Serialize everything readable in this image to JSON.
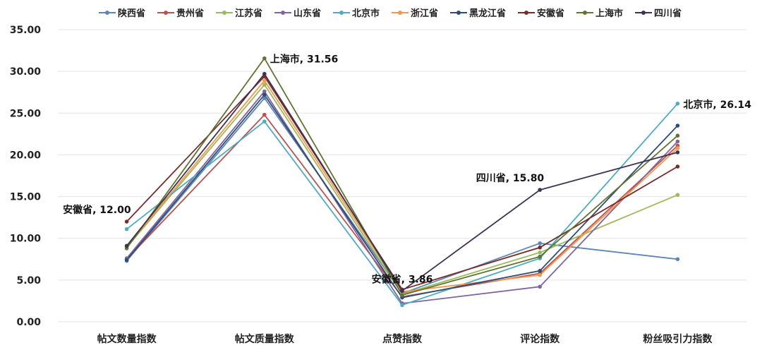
{
  "chart_data": {
    "type": "line",
    "categories": [
      "帖文数量指数",
      "帖文质量指数",
      "点赞指数",
      "评论指数",
      "粉丝吸引力指数"
    ],
    "ylim": [
      0,
      35
    ],
    "yticks": [
      "0.00",
      "5.00",
      "10.00",
      "15.00",
      "20.00",
      "25.00",
      "30.00",
      "35.00"
    ],
    "grid": true,
    "legend": "top",
    "series": [
      {
        "name": "陕西省",
        "color": "#5b86b5",
        "values": [
          7.3,
          26.8,
          3.4,
          9.4,
          7.5
        ]
      },
      {
        "name": "贵州省",
        "color": "#c0504d",
        "values": [
          7.5,
          24.8,
          3.0,
          5.8,
          21.1
        ]
      },
      {
        "name": "江苏省",
        "color": "#9bbb59",
        "values": [
          8.9,
          28.4,
          3.3,
          8.3,
          15.2
        ]
      },
      {
        "name": "山东省",
        "color": "#8064a2",
        "values": [
          7.6,
          27.6,
          2.2,
          4.2,
          21.6
        ]
      },
      {
        "name": "北京市",
        "color": "#4bacc6",
        "values": [
          11.1,
          24.0,
          2.0,
          7.6,
          26.14
        ]
      },
      {
        "name": "浙江省",
        "color": "#f79646",
        "values": [
          9.0,
          28.9,
          3.6,
          5.6,
          20.8
        ]
      },
      {
        "name": "黑龙江省",
        "color": "#2c4d75",
        "values": [
          7.4,
          27.2,
          2.9,
          6.1,
          23.5
        ]
      },
      {
        "name": "安徽省",
        "color": "#772c2a",
        "values": [
          12.0,
          29.4,
          3.86,
          8.9,
          18.6
        ]
      },
      {
        "name": "上海市",
        "color": "#5f7530",
        "values": [
          8.8,
          31.56,
          3.2,
          7.8,
          22.3
        ]
      },
      {
        "name": "四川省",
        "color": "#403152",
        "values": [
          9.1,
          29.7,
          3.7,
          15.8,
          20.3
        ]
      }
    ],
    "annotations": [
      {
        "text": "安徽省, 12.00",
        "series": "安徽省",
        "category": "帖文数量指数",
        "value": 12.0,
        "anchor": "left-above"
      },
      {
        "text": "上海市, 31.56",
        "series": "上海市",
        "category": "帖文质量指数",
        "value": 31.56,
        "anchor": "right"
      },
      {
        "text": "安徽省, 3.86",
        "series": "安徽省",
        "category": "点赞指数",
        "value": 3.86,
        "anchor": "above"
      },
      {
        "text": "四川省, 15.80",
        "series": "四川省",
        "category": "评论指数",
        "value": 15.8,
        "anchor": "left-above"
      },
      {
        "text": "北京市, 26.14",
        "series": "北京市",
        "category": "粉丝吸引力指数",
        "value": 26.14,
        "anchor": "right"
      }
    ]
  }
}
